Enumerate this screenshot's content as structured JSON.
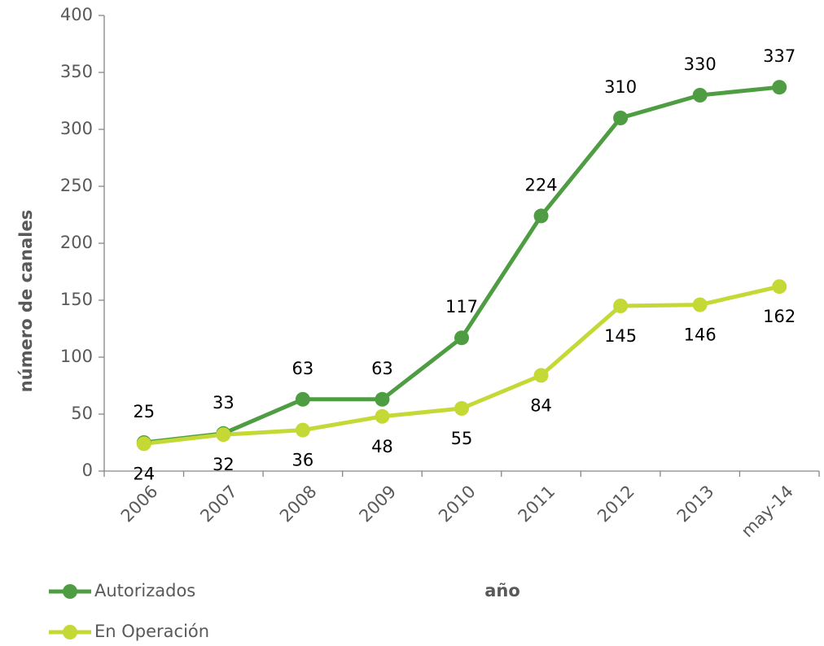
{
  "chart_data": {
    "type": "line",
    "y_label": "número de canales",
    "x_label": "año",
    "categories": [
      "2006",
      "2007",
      "2008",
      "2009",
      "2010",
      "2011",
      "2012",
      "2013",
      "may-14"
    ],
    "series": [
      {
        "name": "Autorizados",
        "color": "#4f9d43",
        "values": [
          25,
          33,
          63,
          63,
          117,
          224,
          310,
          330,
          337
        ]
      },
      {
        "name": "En Operación",
        "color": "#c5d936",
        "values": [
          24,
          32,
          36,
          48,
          55,
          84,
          145,
          146,
          162
        ]
      }
    ],
    "ylim": [
      0,
      400
    ],
    "yticks": [
      0,
      50,
      100,
      150,
      200,
      250,
      300,
      350,
      400
    ],
    "grid": false,
    "legend": "bottom-left"
  }
}
